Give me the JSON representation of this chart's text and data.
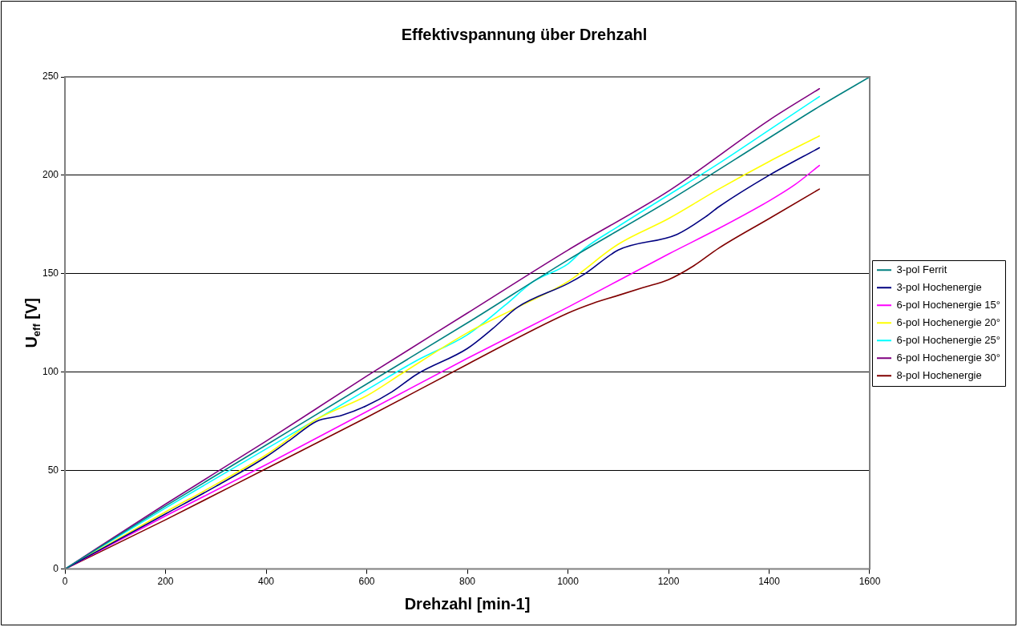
{
  "chart_data": {
    "type": "line",
    "title": "Effektivspannung über Drehzahl",
    "xlabel": "Drehzahl [min-1]",
    "ylabel": "U$_{eff}$ [V]",
    "xlim": [
      0,
      1600
    ],
    "xticks": [
      0,
      200,
      400,
      600,
      800,
      1000,
      1200,
      1400,
      1600
    ],
    "ylim": [
      0,
      250
    ],
    "yticks": [
      0,
      50,
      100,
      150,
      200,
      250
    ],
    "grid": "y",
    "legend": "right",
    "series": [
      {
        "name": "3-pol Ferrit",
        "color": "#008080",
        "x": [
          0,
          200,
          400,
          600,
          800,
          1000,
          1200,
          1400,
          1500,
          1600
        ],
        "values": [
          0,
          32,
          63,
          94,
          125,
          157,
          187,
          219,
          235,
          250
        ]
      },
      {
        "name": "3-pol Hochenergie",
        "color": "#000080",
        "x": [
          0,
          200,
          300,
          400,
          450,
          500,
          550,
          600,
          650,
          700,
          800,
          850,
          900,
          1000,
          1034,
          1100,
          1217,
          1274,
          1300,
          1400,
          1500
        ],
        "values": [
          0,
          28,
          42,
          57,
          66,
          75,
          78,
          83,
          90,
          99,
          112,
          122,
          133,
          145,
          150,
          162,
          170,
          179,
          184,
          200,
          214
        ]
      },
      {
        "name": "6-pol Hochenergie 15°",
        "color": "#ff00ff",
        "x": [
          0,
          200,
          400,
          600,
          800,
          1000,
          1200,
          1300,
          1400,
          1450,
          1500
        ],
        "values": [
          0,
          27,
          53,
          80,
          107,
          133,
          160,
          173,
          187,
          195,
          205
        ]
      },
      {
        "name": "6-pol Hochenergie 20°",
        "color": "#ffff00",
        "x": [
          0,
          200,
          300,
          400,
          500,
          600,
          674,
          800,
          900,
          1000,
          1100,
          1200,
          1300,
          1400,
          1500
        ],
        "values": [
          0,
          29,
          43,
          58,
          76,
          88,
          100,
          120,
          133,
          146,
          165,
          178,
          193,
          207,
          220
        ]
      },
      {
        "name": "6-pol Hochenergie 25°",
        "color": "#00ffff",
        "x": [
          0,
          200,
          400,
          600,
          700,
          800,
          875,
          931,
          1000,
          1034,
          1100,
          1200,
          1300,
          1400,
          1500
        ],
        "values": [
          0,
          31,
          61,
          91,
          106,
          119,
          134,
          146,
          155,
          163,
          174,
          190,
          206,
          223,
          240
        ]
      },
      {
        "name": "6-pol Hochenergie 30°",
        "color": "#800080",
        "x": [
          0,
          200,
          400,
          600,
          800,
          1000,
          1200,
          1400,
          1500
        ],
        "values": [
          0,
          33,
          65,
          98,
          130,
          162,
          192,
          228,
          244
        ]
      },
      {
        "name": "8-pol Hochenergie",
        "color": "#800000",
        "x": [
          0,
          200,
          400,
          600,
          800,
          1000,
          1050,
          1100,
          1150,
          1200,
          1250,
          1300,
          1400,
          1500
        ],
        "values": [
          0,
          25,
          51,
          77,
          104,
          130,
          135,
          139,
          143,
          147,
          154,
          163,
          178,
          193
        ]
      }
    ]
  }
}
